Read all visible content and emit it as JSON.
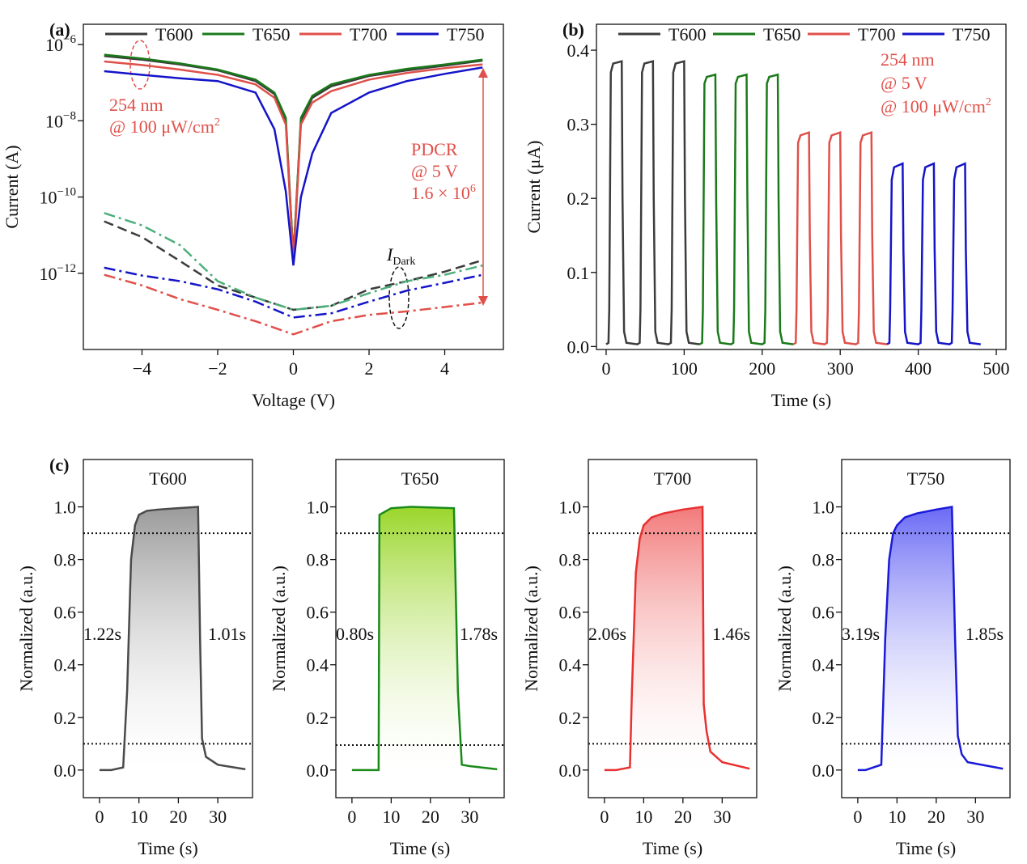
{
  "chart_data": [
    {
      "type": "log-line",
      "panel_label": "(a)",
      "x_label": "Voltage (V)",
      "y_label": "Current (A)",
      "log_y": true,
      "xlim": [
        -5.55,
        5.55
      ],
      "ylim": [
        1e-14,
        3.4e-06
      ],
      "xticks": [
        {
          "value": -4,
          "label": "−4"
        },
        {
          "value": -2,
          "label": "−2"
        },
        0,
        2,
        4
      ],
      "yticks": [
        {
          "value": 1e-06,
          "label": "10",
          "exponent": "−6"
        },
        {
          "value": 1e-08,
          "label": "10",
          "exponent": "−8"
        },
        {
          "value": 1e-10,
          "label": "10",
          "exponent": "−10"
        },
        {
          "value": 1e-12,
          "label": "10",
          "exponent": "−12"
        }
      ],
      "x": [
        -5,
        -4,
        -3,
        -2,
        -1,
        -0.5,
        -0.2,
        0,
        0.2,
        0.5,
        1,
        2,
        3,
        4,
        5
      ],
      "dark_x": [
        -5,
        -4,
        -3,
        -2,
        -1,
        0,
        1,
        2,
        3,
        4,
        5
      ],
      "series": [
        {
          "name": "T600",
          "color": "#3c3c3c",
          "dark_color": "#3c3c3c",
          "values": [
            5e-07,
            4e-07,
            3e-07,
            2.1e-07,
            1.1e-07,
            5e-08,
            1e-08,
            2.5e-12,
            1e-08,
            4e-08,
            8e-08,
            1.5e-07,
            2.1e-07,
            2.8e-07,
            3.8e-07
          ],
          "dark_values": [
            2.3e-11,
            8.9e-12,
            2.1e-12,
            4.8e-13,
            2.3e-13,
            1.1e-13,
            1.4e-13,
            3.8e-13,
            6.2e-13,
            1.1e-12,
            2.2e-12
          ]
        },
        {
          "name": "T650",
          "color": "#1a7a1a",
          "dark_color": "#4caf7a",
          "values": [
            5.4e-07,
            4.3e-07,
            3.2e-07,
            2.2e-07,
            1.2e-07,
            5.5e-08,
            1.2e-08,
            2.5e-12,
            1.2e-08,
            4.5e-08,
            9e-08,
            1.6e-07,
            2.3e-07,
            3e-07,
            4e-07
          ],
          "dark_values": [
            3.8e-11,
            1.8e-11,
            5.5e-12,
            6.2e-13,
            2.3e-13,
            1.1e-13,
            1.4e-13,
            3e-13,
            6.2e-13,
            9.1e-13,
            1.6e-12
          ]
        },
        {
          "name": "T700",
          "color": "#e0504a",
          "dark_color": "#e0504a",
          "values": [
            3.6e-07,
            2.9e-07,
            2.2e-07,
            1.6e-07,
            9e-08,
            4e-08,
            8e-09,
            2e-12,
            8e-09,
            3e-08,
            6e-08,
            1.2e-07,
            1.8e-07,
            2.4e-07,
            3e-07
          ],
          "dark_values": [
            9.1e-13,
            4.8e-13,
            2.1e-13,
            1.1e-13,
            5.5e-14,
            2.5e-14,
            5.5e-14,
            8.1e-14,
            1e-13,
            1.3e-13,
            1.7e-13
          ]
        },
        {
          "name": "T750",
          "color": "#1414c8",
          "dark_color": "#1414c8",
          "values": [
            2e-07,
            1.6e-07,
            1.3e-07,
            1.1e-07,
            5.5e-08,
            6e-09,
            1.4e-10,
            1.6e-12,
            1e-10,
            1.4e-09,
            1.6e-08,
            5.5e-08,
            1.1e-07,
            1.7e-07,
            2.5e-07
          ],
          "dark_values": [
            1.4e-12,
            8.7e-13,
            6.2e-13,
            3.8e-13,
            1.8e-13,
            6.9e-14,
            8.9e-14,
            1.8e-13,
            3.5e-13,
            5.6e-13,
            9.1e-13
          ]
        }
      ],
      "annotations": [
        {
          "text": "254 nm"
        },
        {
          "text": "@ 100 μW/cm",
          "sup": "2"
        },
        {
          "text": "PDCR"
        },
        {
          "text": "@ 5 V"
        },
        {
          "text": "1.6 × 10",
          "sup": "6"
        },
        {
          "text": "I",
          "sub": "Dark"
        }
      ]
    },
    {
      "type": "line",
      "panel_label": "(b)",
      "x_label": "Time (s)",
      "y_label": "Current (μA)",
      "xlim": [
        -12.4,
        512.4
      ],
      "ylim": [
        -0.004,
        0.435
      ],
      "xticks": [
        0,
        100,
        200,
        300,
        400,
        500
      ],
      "yticks": [
        {
          "value": 0,
          "label": "0.0"
        },
        0.1,
        0.2,
        0.3,
        0.4
      ],
      "series": [
        {
          "name": "T600",
          "color": "#3c3c3c",
          "x": [
            0,
            3,
            4,
            6,
            9,
            20,
            21,
            23,
            26,
            40,
            43,
            44,
            46,
            49,
            60,
            61,
            63,
            66,
            80,
            83,
            84,
            86,
            89,
            100,
            101,
            103,
            106,
            120
          ],
          "values": [
            0.003,
            0.005,
            0.05,
            0.37,
            0.382,
            0.385,
            0.2,
            0.02,
            0.005,
            0.003,
            0.005,
            0.05,
            0.37,
            0.382,
            0.385,
            0.2,
            0.02,
            0.005,
            0.003,
            0.005,
            0.05,
            0.37,
            0.382,
            0.385,
            0.2,
            0.02,
            0.005,
            0.003
          ]
        },
        {
          "name": "T650",
          "color": "#1a7a1a",
          "x": [
            120,
            123,
            124,
            126,
            129,
            140,
            141,
            143,
            146,
            160,
            163,
            164,
            166,
            169,
            180,
            181,
            183,
            186,
            200,
            203,
            204,
            206,
            209,
            220,
            221,
            223,
            226,
            240
          ],
          "values": [
            0.003,
            0.005,
            0.05,
            0.355,
            0.364,
            0.367,
            0.2,
            0.02,
            0.005,
            0.003,
            0.005,
            0.05,
            0.355,
            0.364,
            0.367,
            0.2,
            0.02,
            0.005,
            0.003,
            0.005,
            0.05,
            0.355,
            0.364,
            0.367,
            0.2,
            0.02,
            0.005,
            0.003
          ]
        },
        {
          "name": "T700",
          "color": "#e0504a",
          "x": [
            240,
            243,
            244,
            246,
            249,
            260,
            261,
            263,
            266,
            280,
            283,
            284,
            286,
            289,
            300,
            301,
            303,
            306,
            320,
            323,
            324,
            326,
            329,
            340,
            341,
            343,
            346,
            360
          ],
          "values": [
            0.003,
            0.005,
            0.05,
            0.275,
            0.285,
            0.289,
            0.15,
            0.02,
            0.005,
            0.003,
            0.005,
            0.05,
            0.275,
            0.285,
            0.289,
            0.15,
            0.02,
            0.005,
            0.003,
            0.005,
            0.05,
            0.275,
            0.285,
            0.289,
            0.15,
            0.02,
            0.005,
            0.003
          ]
        },
        {
          "name": "T750",
          "color": "#1414c8",
          "x": [
            360,
            363,
            364,
            366,
            369,
            380,
            381,
            383,
            386,
            400,
            403,
            404,
            406,
            409,
            420,
            421,
            423,
            426,
            440,
            443,
            444,
            446,
            449,
            460,
            461,
            463,
            466,
            480
          ],
          "values": [
            0.003,
            0.005,
            0.05,
            0.225,
            0.242,
            0.247,
            0.13,
            0.02,
            0.005,
            0.003,
            0.005,
            0.05,
            0.225,
            0.242,
            0.247,
            0.13,
            0.02,
            0.005,
            0.003,
            0.005,
            0.05,
            0.225,
            0.242,
            0.247,
            0.13,
            0.02,
            0.005,
            0.003
          ]
        }
      ],
      "annotations": [
        {
          "text": "254 nm"
        },
        {
          "text": "@ 5 V"
        },
        {
          "text": "@ 100 μW/cm",
          "sup": "2"
        }
      ]
    },
    {
      "type": "area",
      "panel_label": "(c)",
      "title": "T600",
      "x_label": "Time (s)",
      "y_label": "Normalized (a.u.)",
      "color": "#4a4a4a",
      "fill_color": "#9a9a9a",
      "xlim": [
        -4.1,
        38.8
      ],
      "ylim": [
        -0.105,
        1.18
      ],
      "xticks": [
        0,
        10,
        20,
        30
      ],
      "yticks": [
        {
          "value": 0,
          "label": "0.0"
        },
        0.2,
        0.4,
        0.6,
        0.8,
        {
          "value": 1,
          "label": "1.0"
        }
      ],
      "hlines": [
        0.1,
        0.9
      ],
      "x": [
        0,
        3,
        6,
        7,
        8,
        9,
        10,
        12,
        15,
        20,
        25,
        25.5,
        26,
        27,
        30,
        37
      ],
      "values": [
        0,
        0,
        0.01,
        0.3,
        0.8,
        0.93,
        0.97,
        0.985,
        0.99,
        0.995,
        1.0,
        0.5,
        0.12,
        0.05,
        0.02,
        0.003
      ],
      "rise_label": "1.22s",
      "fall_label": "1.01s"
    },
    {
      "type": "area",
      "title": "T650",
      "x_label": "Time (s)",
      "y_label": "Normalized (a.u.)",
      "color": "#1a8a1a",
      "fill_color": "#9ad62a",
      "xlim": [
        -4.1,
        38.8
      ],
      "ylim": [
        -0.105,
        1.18
      ],
      "xticks": [
        0,
        10,
        20,
        30
      ],
      "yticks": [
        {
          "value": 0,
          "label": "0.0"
        },
        0.2,
        0.4,
        0.6,
        0.8,
        {
          "value": 1,
          "label": "1.0"
        }
      ],
      "hlines": [
        0.095,
        0.9
      ],
      "x": [
        0,
        6.8,
        7,
        10,
        15,
        26,
        27,
        28,
        30,
        37
      ],
      "values": [
        0,
        0,
        0.97,
        0.995,
        1.0,
        0.995,
        0.3,
        0.02,
        0.015,
        0.003
      ],
      "rise_label": "0.80s",
      "fall_label": "1.78s"
    },
    {
      "type": "area",
      "title": "T700",
      "x_label": "Time (s)",
      "y_label": "Normalized (a.u.)",
      "color": "#e83030",
      "fill_color": "#f27a7a",
      "xlim": [
        -4.1,
        38.8
      ],
      "ylim": [
        -0.105,
        1.18
      ],
      "xticks": [
        0,
        10,
        20,
        30
      ],
      "yticks": [
        {
          "value": 0,
          "label": "0.0"
        },
        0.2,
        0.4,
        0.6,
        0.8,
        {
          "value": 1,
          "label": "1.0"
        }
      ],
      "hlines": [
        0.1,
        0.9
      ],
      "x": [
        0,
        3,
        6.5,
        7,
        8,
        9,
        10,
        12,
        15,
        20,
        25,
        25.3,
        26,
        27,
        30,
        37
      ],
      "values": [
        0,
        0,
        0.01,
        0.3,
        0.75,
        0.88,
        0.93,
        0.96,
        0.975,
        0.99,
        1.0,
        0.25,
        0.15,
        0.07,
        0.03,
        0.005
      ],
      "rise_label": "2.06s",
      "fall_label": "1.46s"
    },
    {
      "type": "area",
      "title": "T750",
      "x_label": "Time (s)",
      "y_label": "Normalized (a.u.)",
      "color": "#1a1ad8",
      "fill_color": "#6a6af5",
      "xlim": [
        -4.1,
        38.8
      ],
      "ylim": [
        -0.105,
        1.18
      ],
      "xticks": [
        0,
        10,
        20,
        30
      ],
      "yticks": [
        {
          "value": 0,
          "label": "0.0"
        },
        0.2,
        0.4,
        0.6,
        0.8,
        {
          "value": 1,
          "label": "1.0"
        }
      ],
      "hlines": [
        0.1,
        0.9
      ],
      "x": [
        0,
        2,
        6,
        7,
        8,
        9,
        10,
        12,
        15,
        20,
        24,
        24.8,
        25.5,
        26.5,
        28,
        37
      ],
      "values": [
        0,
        0,
        0.02,
        0.5,
        0.8,
        0.9,
        0.93,
        0.96,
        0.975,
        0.99,
        1.0,
        0.5,
        0.13,
        0.06,
        0.03,
        0.005
      ],
      "rise_label": "3.19s",
      "fall_label": "1.85s"
    }
  ]
}
